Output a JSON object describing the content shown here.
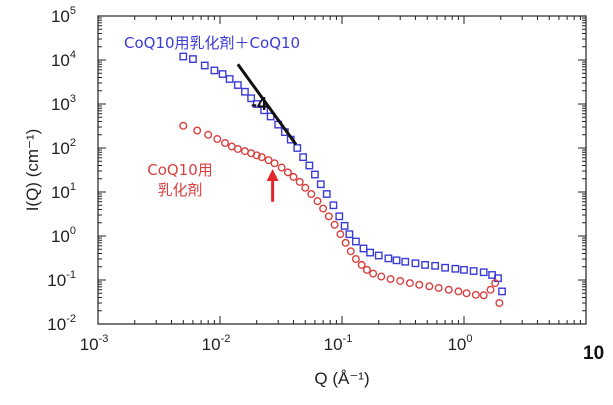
{
  "chart_data": {
    "type": "scatter",
    "x_scale": "log",
    "y_scale": "log",
    "xlim": [
      0.001,
      10
    ],
    "ylim": [
      0.01,
      100000
    ],
    "xlabel": "Q  (Å⁻¹)",
    "ylabel": "I(Q)  (cm⁻¹)",
    "x_tick_labels": [
      {
        "v": 0.001,
        "base": "10",
        "exp": "-3"
      },
      {
        "v": 0.01,
        "base": "10",
        "exp": "-2"
      },
      {
        "v": 0.1,
        "base": "10",
        "exp": "-1"
      },
      {
        "v": 1,
        "base": "10",
        "exp": "0"
      }
    ],
    "x_tick_extra_label": "10",
    "y_tick_labels": [
      {
        "v": 0.01,
        "base": "10",
        "exp": "-2"
      },
      {
        "v": 0.1,
        "base": "10",
        "exp": "-1"
      },
      {
        "v": 1,
        "base": "10",
        "exp": "0"
      },
      {
        "v": 10,
        "base": "10",
        "exp": "1"
      },
      {
        "v": 100,
        "base": "10",
        "exp": "2"
      },
      {
        "v": 1000,
        "base": "10",
        "exp": "3"
      },
      {
        "v": 10000,
        "base": "10",
        "exp": "4"
      },
      {
        "v": 100000,
        "base": "10",
        "exp": "5"
      }
    ],
    "grid": false,
    "series": [
      {
        "name": "CoQ10用乳化剤＋CoQ10",
        "color": "#3b3bd6",
        "marker": "square",
        "points": [
          [
            0.005,
            12000
          ],
          [
            0.006,
            10500
          ],
          [
            0.0075,
            7500
          ],
          [
            0.009,
            5800
          ],
          [
            0.0105,
            4800
          ],
          [
            0.012,
            3700
          ],
          [
            0.014,
            2700
          ],
          [
            0.016,
            1900
          ],
          [
            0.018,
            1350
          ],
          [
            0.02,
            1000
          ],
          [
            0.023,
            720
          ],
          [
            0.026,
            520
          ],
          [
            0.03,
            340
          ],
          [
            0.034,
            230
          ],
          [
            0.038,
            155
          ],
          [
            0.043,
            100
          ],
          [
            0.048,
            62
          ],
          [
            0.054,
            40
          ],
          [
            0.06,
            25
          ],
          [
            0.067,
            15
          ],
          [
            0.075,
            9
          ],
          [
            0.085,
            5
          ],
          [
            0.095,
            2.8
          ],
          [
            0.105,
            1.7
          ],
          [
            0.115,
            1.1
          ],
          [
            0.13,
            0.75
          ],
          [
            0.15,
            0.52
          ],
          [
            0.17,
            0.42
          ],
          [
            0.2,
            0.36
          ],
          [
            0.24,
            0.31
          ],
          [
            0.28,
            0.28
          ],
          [
            0.33,
            0.26
          ],
          [
            0.4,
            0.24
          ],
          [
            0.48,
            0.22
          ],
          [
            0.58,
            0.21
          ],
          [
            0.7,
            0.19
          ],
          [
            0.85,
            0.18
          ],
          [
            1.0,
            0.17
          ],
          [
            1.2,
            0.16
          ],
          [
            1.45,
            0.15
          ],
          [
            1.7,
            0.13
          ],
          [
            1.9,
            0.11
          ],
          [
            2.05,
            0.055
          ]
        ]
      },
      {
        "name": "CoQ10用乳化剤",
        "color": "#d94040",
        "marker": "circle",
        "points": [
          [
            0.005,
            320
          ],
          [
            0.0065,
            250
          ],
          [
            0.008,
            200
          ],
          [
            0.0095,
            160
          ],
          [
            0.011,
            130
          ],
          [
            0.0125,
            108
          ],
          [
            0.014,
            95
          ],
          [
            0.016,
            85
          ],
          [
            0.018,
            76
          ],
          [
            0.02,
            68
          ],
          [
            0.022,
            62
          ],
          [
            0.025,
            53
          ],
          [
            0.028,
            45
          ],
          [
            0.032,
            36
          ],
          [
            0.036,
            28
          ],
          [
            0.04,
            22
          ],
          [
            0.045,
            17
          ],
          [
            0.05,
            12.5
          ],
          [
            0.056,
            9
          ],
          [
            0.063,
            6.2
          ],
          [
            0.07,
            4.2
          ],
          [
            0.078,
            2.8
          ],
          [
            0.087,
            1.8
          ],
          [
            0.097,
            1.1
          ],
          [
            0.107,
            0.7
          ],
          [
            0.118,
            0.45
          ],
          [
            0.13,
            0.3
          ],
          [
            0.145,
            0.22
          ],
          [
            0.16,
            0.17
          ],
          [
            0.18,
            0.14
          ],
          [
            0.21,
            0.12
          ],
          [
            0.25,
            0.105
          ],
          [
            0.3,
            0.095
          ],
          [
            0.36,
            0.085
          ],
          [
            0.43,
            0.078
          ],
          [
            0.52,
            0.072
          ],
          [
            0.62,
            0.066
          ],
          [
            0.75,
            0.06
          ],
          [
            0.9,
            0.055
          ],
          [
            1.05,
            0.05
          ],
          [
            1.25,
            0.046
          ],
          [
            1.45,
            0.045
          ],
          [
            1.65,
            0.06
          ],
          [
            1.8,
            0.085
          ],
          [
            1.95,
            0.03
          ]
        ]
      }
    ],
    "legend": {
      "blue_label": "CoQ10用乳化剤＋CoQ10",
      "red_label_line1": "CoQ10用",
      "red_label_line2": "乳化剤"
    },
    "annotations": {
      "slope_label": "-4",
      "slope_line": {
        "from": [
          0.014,
          8000
        ],
        "to": [
          0.042,
          120
        ]
      },
      "arrow": {
        "x": 0.027,
        "y_tail": 6,
        "y_head": 30,
        "color": "#e0282a"
      }
    }
  }
}
